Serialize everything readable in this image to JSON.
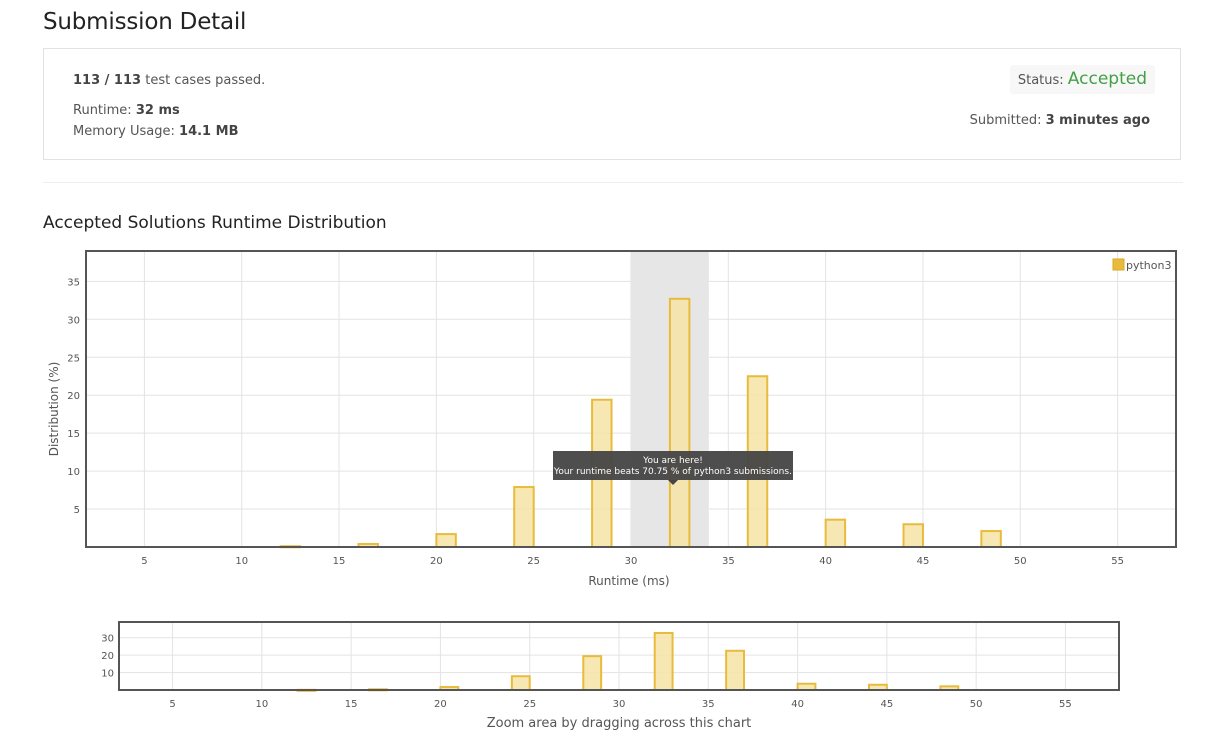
{
  "header": {
    "title": "Submission Detail"
  },
  "summary": {
    "passed_count": "113 / 113",
    "passed_suffix": "test cases passed.",
    "runtime_label": "Runtime:",
    "runtime_value": "32 ms",
    "memory_label": "Memory Usage:",
    "memory_value": "14.1 MB",
    "status_label": "Status:",
    "status_value": "Accepted",
    "submitted_label": "Submitted:",
    "submitted_value": "3 minutes ago"
  },
  "colors": {
    "accepted": "#43a047",
    "bar_fill": "#f6e3a6",
    "bar_stroke": "#e9bb3c",
    "highlight": "#e6e6e6",
    "tooltip_bg": "#444444"
  },
  "distribution": {
    "section_title": "Accepted Solutions Runtime Distribution",
    "tooltip_line1": "You are here!",
    "tooltip_line2": "Your runtime beats 70.75 % of python3 submissions.",
    "zoom_caption": "Zoom area by dragging across this chart"
  },
  "chart_data": [
    {
      "type": "bar",
      "xlabel": "Runtime (ms)",
      "ylabel": "Distribution (%)",
      "xlim": [
        2,
        58
      ],
      "ylim": [
        0,
        39
      ],
      "xticks": [
        5,
        10,
        15,
        20,
        25,
        30,
        35,
        40,
        45,
        50,
        55
      ],
      "yticks": [
        5,
        10,
        15,
        20,
        25,
        30,
        35
      ],
      "bar_width": 1,
      "legend_position": "top-right",
      "grid": true,
      "highlight_range": [
        30,
        34
      ],
      "series": [
        {
          "name": "python3",
          "x": [
            12.5,
            16.5,
            20.5,
            24.5,
            28.5,
            32.5,
            36.5,
            40.5,
            44.5,
            48.5
          ],
          "values": [
            0.1,
            0.4,
            1.7,
            7.9,
            19.4,
            32.7,
            22.5,
            3.6,
            3.0,
            2.1
          ]
        }
      ]
    },
    {
      "type": "bar",
      "xlim": [
        2,
        58
      ],
      "ylim": [
        0,
        39
      ],
      "xticks": [
        5,
        10,
        15,
        20,
        25,
        30,
        35,
        40,
        45,
        50,
        55
      ],
      "yticks": [
        10,
        20,
        30
      ],
      "bar_width": 1,
      "grid": true,
      "series": [
        {
          "name": "python3",
          "x": [
            12.5,
            16.5,
            20.5,
            24.5,
            28.5,
            32.5,
            36.5,
            40.5,
            44.5,
            48.5
          ],
          "values": [
            0.1,
            0.4,
            1.7,
            7.9,
            19.4,
            32.7,
            22.5,
            3.6,
            3.0,
            2.1
          ]
        }
      ]
    }
  ]
}
